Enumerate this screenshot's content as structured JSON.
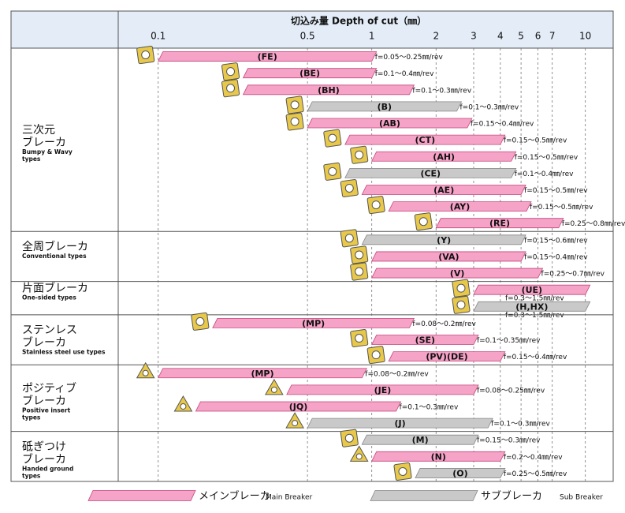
{
  "chart_data": {
    "type": "range",
    "title": "切込み量 Depth of cut（㎜）",
    "log": true,
    "xlim": [
      0.065,
      13.5
    ],
    "xticks": [
      0.1,
      0.5,
      1,
      2,
      3,
      4,
      5,
      6,
      7,
      10
    ],
    "grid": true,
    "colors": {
      "main": "#f5a3c7",
      "sub": "#c9c9c9"
    },
    "groups": [
      {
        "name": [
          "三次元",
          "ブレーカ"
        ],
        "subtitle": [
          "Bumpy & Wavy",
          "types"
        ],
        "rows": [
          {
            "label": "(FE)",
            "range": [
              0.1,
              1
            ],
            "kind": "main",
            "feed": "f=0.05～0.25㎜/rev"
          },
          {
            "label": "(BE)",
            "range": [
              0.25,
              1
            ],
            "kind": "main",
            "feed": "f=0.1～0.4㎜/rev"
          },
          {
            "label": "(BH)",
            "range": [
              0.25,
              1.5
            ],
            "kind": "main",
            "feed": "f=0.1～0.3㎜/rev"
          },
          {
            "label": "(B)",
            "range": [
              0.5,
              2.5
            ],
            "kind": "sub",
            "feed": "f=0.1～0.3㎜/rev"
          },
          {
            "label": "(AB)",
            "range": [
              0.5,
              2.8
            ],
            "kind": "main",
            "feed": "f=0.15～0.4㎜/rev"
          },
          {
            "label": "(CT)",
            "range": [
              0.75,
              4
            ],
            "kind": "main",
            "feed": "f=0.15～0.5㎜/rev"
          },
          {
            "label": "(AH)",
            "range": [
              1,
              4.5
            ],
            "kind": "main",
            "feed": "f=0.15～0.5㎜/rev"
          },
          {
            "label": "(CE)",
            "range": [
              0.75,
              4.5
            ],
            "kind": "sub",
            "feed": "f=0.1～0.4㎜/rev"
          },
          {
            "label": "(AE)",
            "range": [
              0.9,
              5
            ],
            "kind": "main",
            "feed": "f=0.15～0.5㎜/rev"
          },
          {
            "label": "(AY)",
            "range": [
              1.2,
              5.3
            ],
            "kind": "main",
            "feed": "f=0.15～0.5㎜/rev"
          },
          {
            "label": "(RE)",
            "range": [
              2,
              7.5
            ],
            "kind": "main",
            "feed": "f=0.25～0.8㎜/rev"
          }
        ]
      },
      {
        "name": [
          "全周ブレーカ"
        ],
        "subtitle": [
          "Conventional types"
        ],
        "rows": [
          {
            "label": "(Y)",
            "range": [
              0.9,
              5
            ],
            "kind": "sub",
            "feed": "f=0.15～0.6㎜/rev"
          },
          {
            "label": "(VA)",
            "range": [
              1,
              5
            ],
            "kind": "main",
            "feed": "f=0.15～0.4㎜/rev"
          },
          {
            "label": "(V)",
            "range": [
              1,
              6
            ],
            "kind": "main",
            "feed": "f=0.25～0.7㎜/rev"
          }
        ]
      },
      {
        "name": [
          "片面ブレーカ"
        ],
        "subtitle": [
          "One-sided types"
        ],
        "rows": [
          {
            "label": "(UE)",
            "range": [
              3,
              10
            ],
            "kind": "main",
            "feed": "f=0.3～1.5㎜/rev"
          },
          {
            "label": "(H,HX)",
            "range": [
              3,
              10
            ],
            "kind": "sub",
            "feed": "f=0.3～1.5㎜/rev"
          }
        ]
      },
      {
        "name": [
          "ステンレス",
          "ブレーカ"
        ],
        "subtitle": [
          "Stainless steel use types"
        ],
        "rows": [
          {
            "label": "(MP)",
            "range": [
              0.18,
              1.5
            ],
            "kind": "main",
            "feed": "f=0.08～0.2㎜/rev"
          },
          {
            "label": "(SE)",
            "range": [
              1,
              3
            ],
            "kind": "main",
            "feed": "f=0.1～0.35㎜/rev"
          },
          {
            "label": "(PV)(DE)",
            "range": [
              1.2,
              4
            ],
            "kind": "main",
            "feed": "f=0.15～0.4㎜/rev"
          }
        ]
      },
      {
        "name": [
          "ポジティブ",
          "ブレーカ"
        ],
        "subtitle": [
          "Positive insert",
          "types"
        ],
        "rows": [
          {
            "label": "(MP)",
            "range": [
              0.1,
              0.9
            ],
            "kind": "main",
            "feed": "f=0.08～0.2㎜/rev"
          },
          {
            "label": "(JE)",
            "range": [
              0.4,
              3
            ],
            "kind": "main",
            "feed": "f=0.08～0.25㎜/rev"
          },
          {
            "label": "(JQ)",
            "range": [
              0.15,
              1.3
            ],
            "kind": "main",
            "feed": "f=0.1～0.3㎜/rev"
          },
          {
            "label": "(J)",
            "range": [
              0.5,
              3.5
            ],
            "kind": "sub",
            "feed": "f=0.1～0.3㎜/rev"
          }
        ]
      },
      {
        "name": [
          "砥ぎつけ",
          "ブレーカ"
        ],
        "subtitle": [
          "Handed ground",
          "types"
        ],
        "rows": [
          {
            "label": "(M)",
            "range": [
              0.9,
              3
            ],
            "kind": "sub",
            "feed": "f=0.15～0.3㎜/rev"
          },
          {
            "label": "(N)",
            "range": [
              1,
              4
            ],
            "kind": "main",
            "feed": "f=0.2～0.4㎜/rev"
          },
          {
            "label": "(O)",
            "range": [
              1.6,
              4
            ],
            "kind": "sub",
            "feed": "f=0.25～0.5㎜/rev"
          }
        ]
      }
    ],
    "legend": [
      {
        "kind": "main",
        "name": "メインブレーカ",
        "note": "Main Breaker"
      },
      {
        "kind": "sub",
        "name": "サブブレーカ",
        "note": "Sub Breaker"
      }
    ]
  }
}
